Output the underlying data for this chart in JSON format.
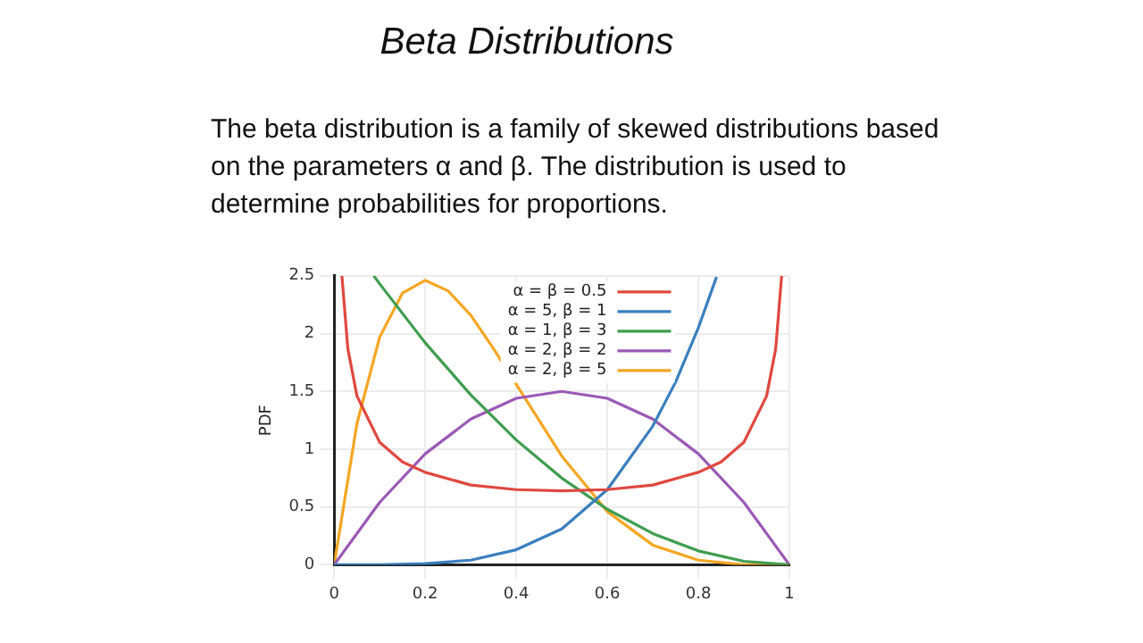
{
  "chart_data": {
    "type": "line",
    "title": "Beta Distributions",
    "subtitle": "The beta distribution is a family of skewed distributions based on the parameters α and β. The distribution is used to determine probabilities for proportions.",
    "ylabel": "PDF",
    "series": [
      {
        "name": "α = β = 0.5",
        "color": "#e0483f",
        "x": [
          0.017,
          0.03,
          0.05,
          0.1,
          0.15,
          0.2,
          0.3,
          0.4,
          0.5,
          0.6,
          0.7,
          0.8,
          0.85,
          0.9,
          0.95,
          0.97,
          0.983
        ],
        "values": [
          2.5,
          1.87,
          1.46,
          1.06,
          0.89,
          0.8,
          0.69,
          0.65,
          0.64,
          0.65,
          0.69,
          0.8,
          0.89,
          1.06,
          1.46,
          1.87,
          2.5
        ]
      },
      {
        "name": "α = 5, β = 1",
        "color": "#3a7fbf",
        "x": [
          0,
          0.1,
          0.2,
          0.3,
          0.4,
          0.5,
          0.6,
          0.7,
          0.75,
          0.8,
          0.84
        ],
        "values": [
          0,
          0,
          0.01,
          0.04,
          0.13,
          0.31,
          0.65,
          1.2,
          1.58,
          2.05,
          2.49
        ]
      },
      {
        "name": "α = 1, β = 3",
        "color": "#3f9e4f",
        "x": [
          0.087,
          0.1,
          0.2,
          0.3,
          0.4,
          0.5,
          0.6,
          0.7,
          0.8,
          0.9,
          1
        ],
        "values": [
          2.5,
          2.43,
          1.92,
          1.47,
          1.08,
          0.75,
          0.48,
          0.27,
          0.12,
          0.03,
          0
        ]
      },
      {
        "name": "α = 2, β = 2",
        "color": "#9b59b6",
        "x": [
          0,
          0.1,
          0.2,
          0.3,
          0.4,
          0.5,
          0.6,
          0.7,
          0.8,
          0.9,
          1
        ],
        "values": [
          0,
          0.54,
          0.96,
          1.26,
          1.44,
          1.5,
          1.44,
          1.26,
          0.96,
          0.54,
          0
        ]
      },
      {
        "name": "α = 2, β = 5",
        "color": "#f5a623",
        "x": [
          0,
          0.05,
          0.1,
          0.15,
          0.2,
          0.25,
          0.3,
          0.35,
          0.4,
          0.5,
          0.6,
          0.7,
          0.8,
          0.9,
          1
        ],
        "values": [
          0,
          1.22,
          1.97,
          2.35,
          2.46,
          2.37,
          2.16,
          1.87,
          1.56,
          0.94,
          0.46,
          0.17,
          0.04,
          0,
          0
        ]
      }
    ],
    "xlim": [
      0,
      1
    ],
    "xticks": [
      0,
      0.2,
      0.4,
      0.6,
      0.8,
      1
    ],
    "ylim": [
      0,
      2.5
    ],
    "yticks": [
      0,
      0.5,
      1,
      1.5,
      2,
      2.5
    ],
    "grid": true,
    "legend": "top right",
    "marker": "none",
    "line_style": "solid"
  }
}
